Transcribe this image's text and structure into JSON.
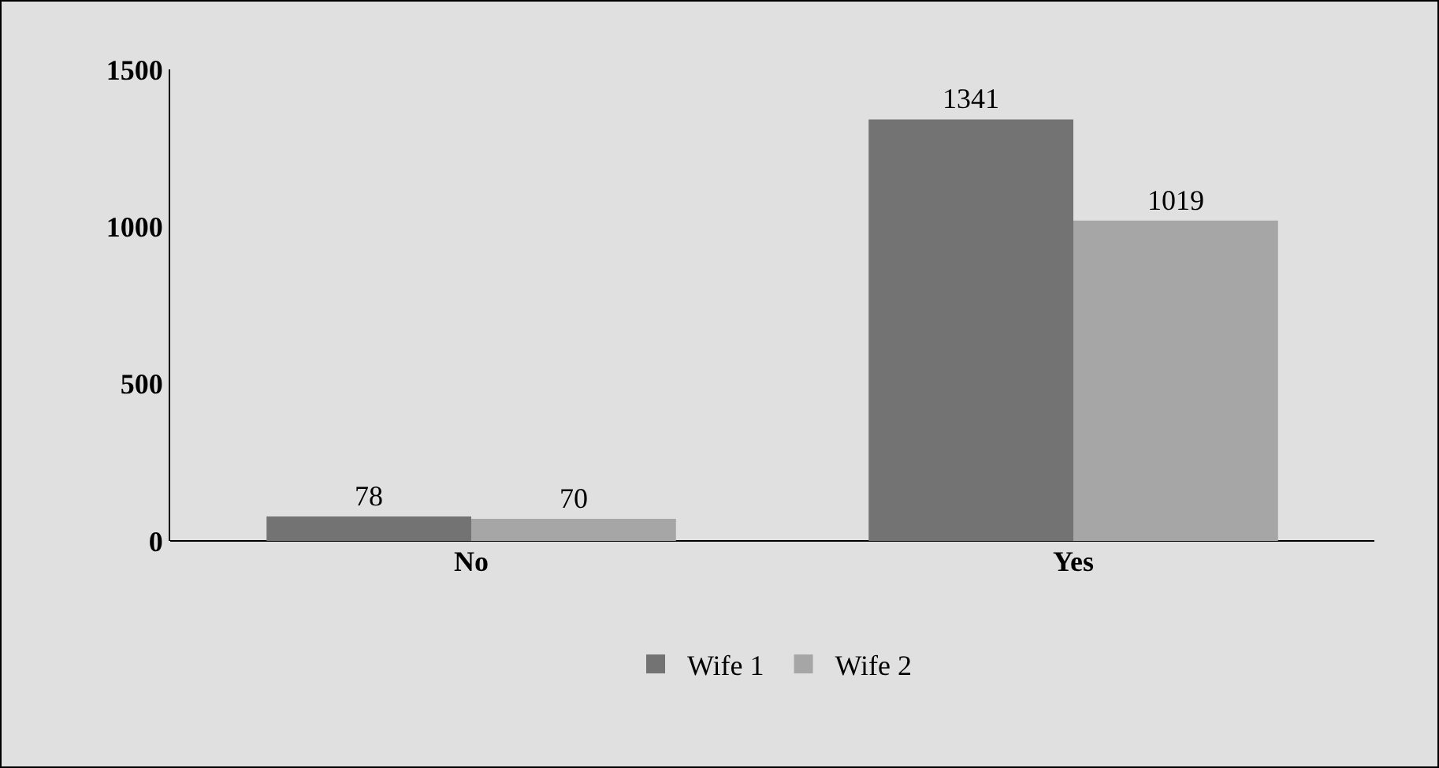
{
  "chart_data": {
    "type": "bar",
    "categories": [
      "No",
      "Yes"
    ],
    "series": [
      {
        "name": "Wife 1",
        "color": "#737373",
        "values": [
          78,
          1341
        ]
      },
      {
        "name": "Wife 2",
        "color": "#a6a6a6",
        "values": [
          70,
          1019
        ]
      }
    ],
    "ylim": [
      0,
      1500
    ],
    "yticks": [
      0,
      500,
      1000,
      1500
    ],
    "grid": false,
    "legend": "bottom",
    "data_labels": true
  }
}
